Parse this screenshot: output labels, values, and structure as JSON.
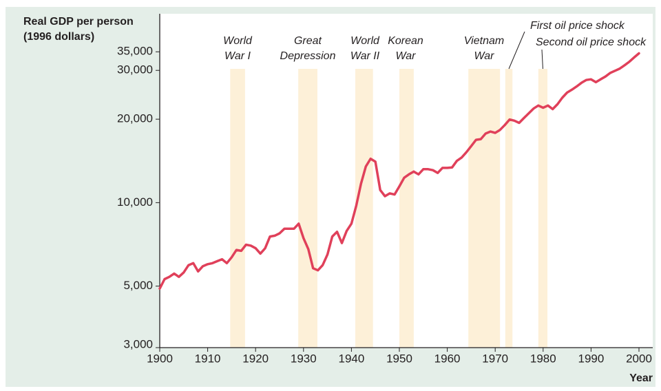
{
  "chart_data": {
    "type": "line",
    "ylabel": [
      "Real GDP per person",
      "(1996 dollars)"
    ],
    "xlabel": "Year",
    "yscale": "log",
    "x": [
      1900,
      1901,
      1902,
      1903,
      1904,
      1905,
      1906,
      1907,
      1908,
      1909,
      1910,
      1911,
      1912,
      1913,
      1914,
      1915,
      1916,
      1917,
      1918,
      1919,
      1920,
      1921,
      1922,
      1923,
      1924,
      1925,
      1926,
      1927,
      1928,
      1929,
      1930,
      1931,
      1932,
      1933,
      1934,
      1935,
      1936,
      1937,
      1938,
      1939,
      1940,
      1941,
      1942,
      1943,
      1944,
      1945,
      1946,
      1947,
      1948,
      1949,
      1950,
      1951,
      1952,
      1953,
      1954,
      1955,
      1956,
      1957,
      1958,
      1959,
      1960,
      1961,
      1962,
      1963,
      1964,
      1965,
      1966,
      1967,
      1968,
      1969,
      1970,
      1971,
      1972,
      1973,
      1974,
      1975,
      1976,
      1977,
      1978,
      1979,
      1980,
      1981,
      1982,
      1983,
      1984,
      1985,
      1986,
      1987,
      1988,
      1989,
      1990,
      1991,
      1992,
      1993,
      1994,
      1995,
      1996,
      1997,
      1998,
      1999,
      2000
    ],
    "series": [
      {
        "color": "#e0405a",
        "values": [
          4900,
          5300,
          5400,
          5550,
          5400,
          5600,
          5950,
          6050,
          5650,
          5900,
          6000,
          6050,
          6150,
          6250,
          6050,
          6350,
          6750,
          6700,
          7050,
          7000,
          6850,
          6550,
          6850,
          7550,
          7600,
          7750,
          8050,
          8050,
          8050,
          8400,
          7450,
          6800,
          5800,
          5700,
          5950,
          6500,
          7550,
          7850,
          7150,
          7900,
          8400,
          9750,
          11700,
          13500,
          14400,
          14050,
          11100,
          10550,
          10800,
          10700,
          11450,
          12300,
          12650,
          12950,
          12650,
          13200,
          13200,
          13100,
          12800,
          13350,
          13350,
          13400,
          14150,
          14550,
          15200,
          16000,
          16850,
          16950,
          17750,
          18050,
          17850,
          18300,
          19050,
          19950,
          19750,
          19400,
          20200,
          21000,
          21850,
          22400,
          22000,
          22400,
          21750,
          22650,
          23900,
          24950,
          25550,
          26250,
          27050,
          27700,
          27850,
          27200,
          27850,
          28500,
          29350,
          29900,
          30450,
          31300,
          32250,
          33400,
          34550
        ]
      }
    ],
    "xlim": [
      1900,
      2000
    ],
    "xticks": [
      1900,
      1910,
      1920,
      1930,
      1940,
      1950,
      1960,
      1970,
      1980,
      1990,
      2000
    ],
    "ylim": [
      3000,
      48000
    ],
    "yticks": [
      {
        "value": 3000,
        "label": "3,000"
      },
      {
        "value": 5000,
        "label": "5,000"
      },
      {
        "value": 10000,
        "label": "10,000"
      },
      {
        "value": 20000,
        "label": "20,000"
      },
      {
        "value": 30000,
        "label": "30,000"
      },
      {
        "value": 35000,
        "label": "35,000"
      }
    ],
    "band_color": "#fdf0d8",
    "periods": [
      {
        "label": [
          "World",
          "War I"
        ],
        "start": 1914.7,
        "end": 1917.8
      },
      {
        "label": [
          "Great",
          "Depression"
        ],
        "start": 1928.9,
        "end": 1932.9
      },
      {
        "label": [
          "World",
          "War II"
        ],
        "start": 1940.8,
        "end": 1944.5
      },
      {
        "label": [
          "Korean",
          "War"
        ],
        "start": 1950,
        "end": 1953
      },
      {
        "label": [
          "Vietnam",
          "War"
        ],
        "start": 1964.4,
        "end": 1971
      },
      {
        "label": [
          "First oil price shock"
        ],
        "start": 1972.1,
        "end": 1973.6
      },
      {
        "label": [
          "Second oil price shock"
        ],
        "start": 1979,
        "end": 1980.9
      }
    ]
  }
}
